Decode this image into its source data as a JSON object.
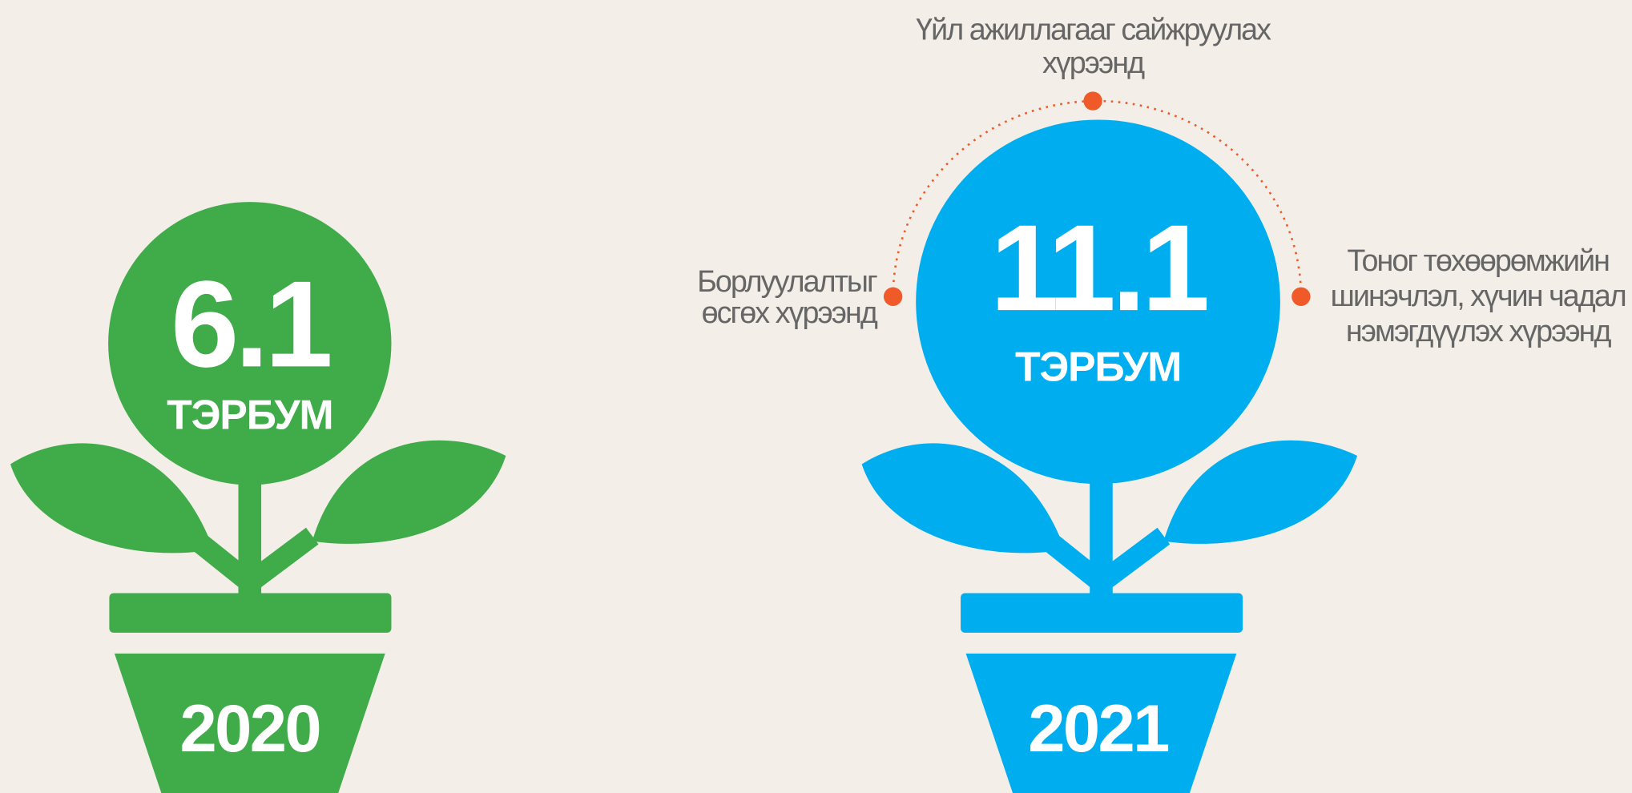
{
  "plants": [
    {
      "value": "6.1",
      "unit": "ТЭРБУМ",
      "year": "2020"
    },
    {
      "value": "11.1",
      "unit": "ТЭРБУМ",
      "year": "2021"
    }
  ],
  "annotations": {
    "top": [
      "Үйл ажиллагааг сайжруулах",
      "хүрээнд"
    ],
    "left": [
      "Борлуулалтыг",
      "өсгөх хүрээнд"
    ],
    "right": [
      "Тоног төхөөрөмжийн",
      "шинэчлэл, хүчин чадал",
      "нэмэгдүүлэх хүрээнд"
    ]
  }
}
